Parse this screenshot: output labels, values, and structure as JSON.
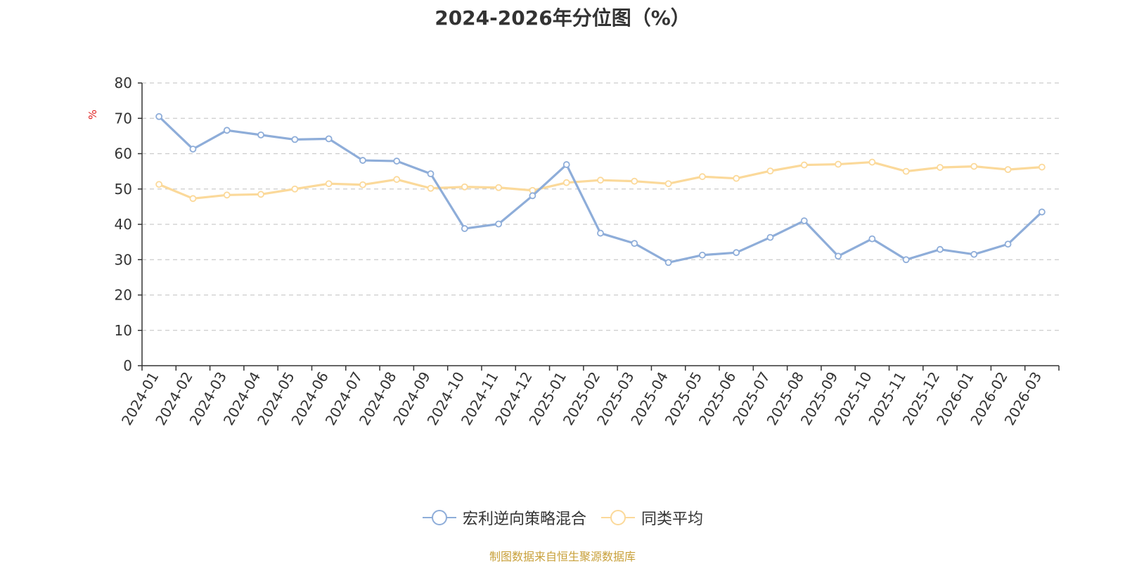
{
  "chart_data": {
    "type": "line",
    "title": "2024-2026年分位图（%）",
    "ylabel": "%",
    "xlabel": "",
    "ylim": [
      0,
      80
    ],
    "yticks": [
      0,
      10,
      20,
      30,
      40,
      50,
      60,
      70,
      80
    ],
    "grid": "horizontal dashed",
    "legend_position": "bottom",
    "categories": [
      "2024-01",
      "2024-02",
      "2024-03",
      "2024-04",
      "2024-05",
      "2024-06",
      "2024-07",
      "2024-08",
      "2024-09",
      "2024-10",
      "2024-11",
      "2024-12",
      "2025-01",
      "2025-02",
      "2025-03",
      "2025-04",
      "2025-05",
      "2025-06",
      "2025-07",
      "2025-08",
      "2025-09",
      "2025-10",
      "2025-11",
      "2025-12",
      "2026-01",
      "2026-02",
      "2026-03"
    ],
    "series": [
      {
        "name": "宏利逆向策略混合",
        "color": "#8eadd9",
        "values": [
          70.5,
          61.3,
          66.6,
          65.3,
          64.0,
          64.2,
          58.1,
          57.9,
          54.3,
          38.8,
          40.1,
          48.1,
          56.9,
          37.5,
          34.6,
          29.2,
          31.3,
          32.0,
          36.3,
          41.0,
          31.0,
          35.9,
          30.0,
          32.9,
          31.5,
          34.4,
          43.5
        ]
      },
      {
        "name": "同类平均",
        "color": "#fbd99a",
        "values": [
          51.3,
          47.3,
          48.3,
          48.5,
          50.0,
          51.5,
          51.2,
          52.7,
          50.2,
          50.6,
          50.4,
          49.6,
          51.8,
          52.5,
          52.2,
          51.5,
          53.5,
          53.0,
          55.1,
          56.8,
          57.0,
          57.6,
          55.0,
          56.1,
          56.4,
          55.5,
          56.2
        ]
      }
    ]
  },
  "source_note": "制图数据来自恒生聚源数据库"
}
